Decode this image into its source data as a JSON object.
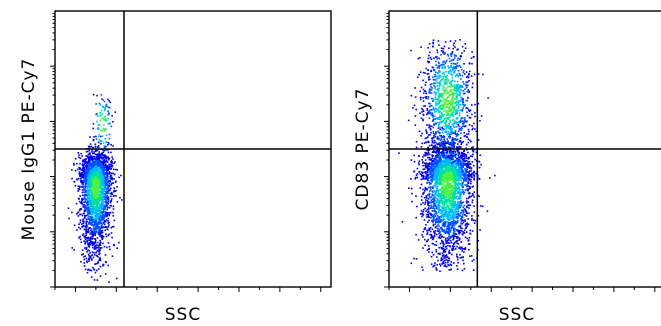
{
  "chart_data": [
    {
      "type": "scatter",
      "style": "density-dot-plot",
      "xlabel": "SSC",
      "ylabel": "Mouse IgG1 PE-Cy7",
      "xlim": [
        0,
        1
      ],
      "ylim": [
        0,
        1
      ],
      "x_scale": "linear",
      "y_scale": "log",
      "grid": false,
      "legend": "none",
      "gate": {
        "x": 0.25,
        "y": 0.5
      },
      "populations": [
        {
          "cx": 0.145,
          "cy": 0.375,
          "sx": 0.028,
          "sy": 0.055,
          "n": 2600,
          "ymin": 0.02,
          "ymax": 0.7,
          "tail_down": true
        },
        {
          "cx": 0.17,
          "cy": 0.59,
          "sx": 0.02,
          "sy": 0.07,
          "n": 120,
          "ymin": 0.47,
          "ymax": 0.7,
          "tail_down": false
        }
      ],
      "colors": [
        "#0000e0",
        "#0050ff",
        "#00b8ff",
        "#00e0a0",
        "#50f040"
      ]
    },
    {
      "type": "scatter",
      "style": "density-dot-plot",
      "xlabel": "SSC",
      "ylabel": "CD83 PE-Cy7",
      "xlim": [
        0,
        1
      ],
      "ylim": [
        0,
        1
      ],
      "x_scale": "linear",
      "y_scale": "log",
      "grid": false,
      "legend": "none",
      "gate": {
        "x": 0.32,
        "y": 0.5
      },
      "populations": [
        {
          "cx": 0.21,
          "cy": 0.39,
          "sx": 0.045,
          "sy": 0.065,
          "n": 3000,
          "ymin": 0.06,
          "ymax": 0.9,
          "tail_down": true
        },
        {
          "cx": 0.21,
          "cy": 0.68,
          "sx": 0.045,
          "sy": 0.11,
          "n": 1100,
          "ymin": 0.45,
          "ymax": 0.9,
          "tail_down": false
        }
      ],
      "colors": [
        "#0000e0",
        "#0050ff",
        "#00b8ff",
        "#00e0a0",
        "#50f040"
      ]
    }
  ]
}
